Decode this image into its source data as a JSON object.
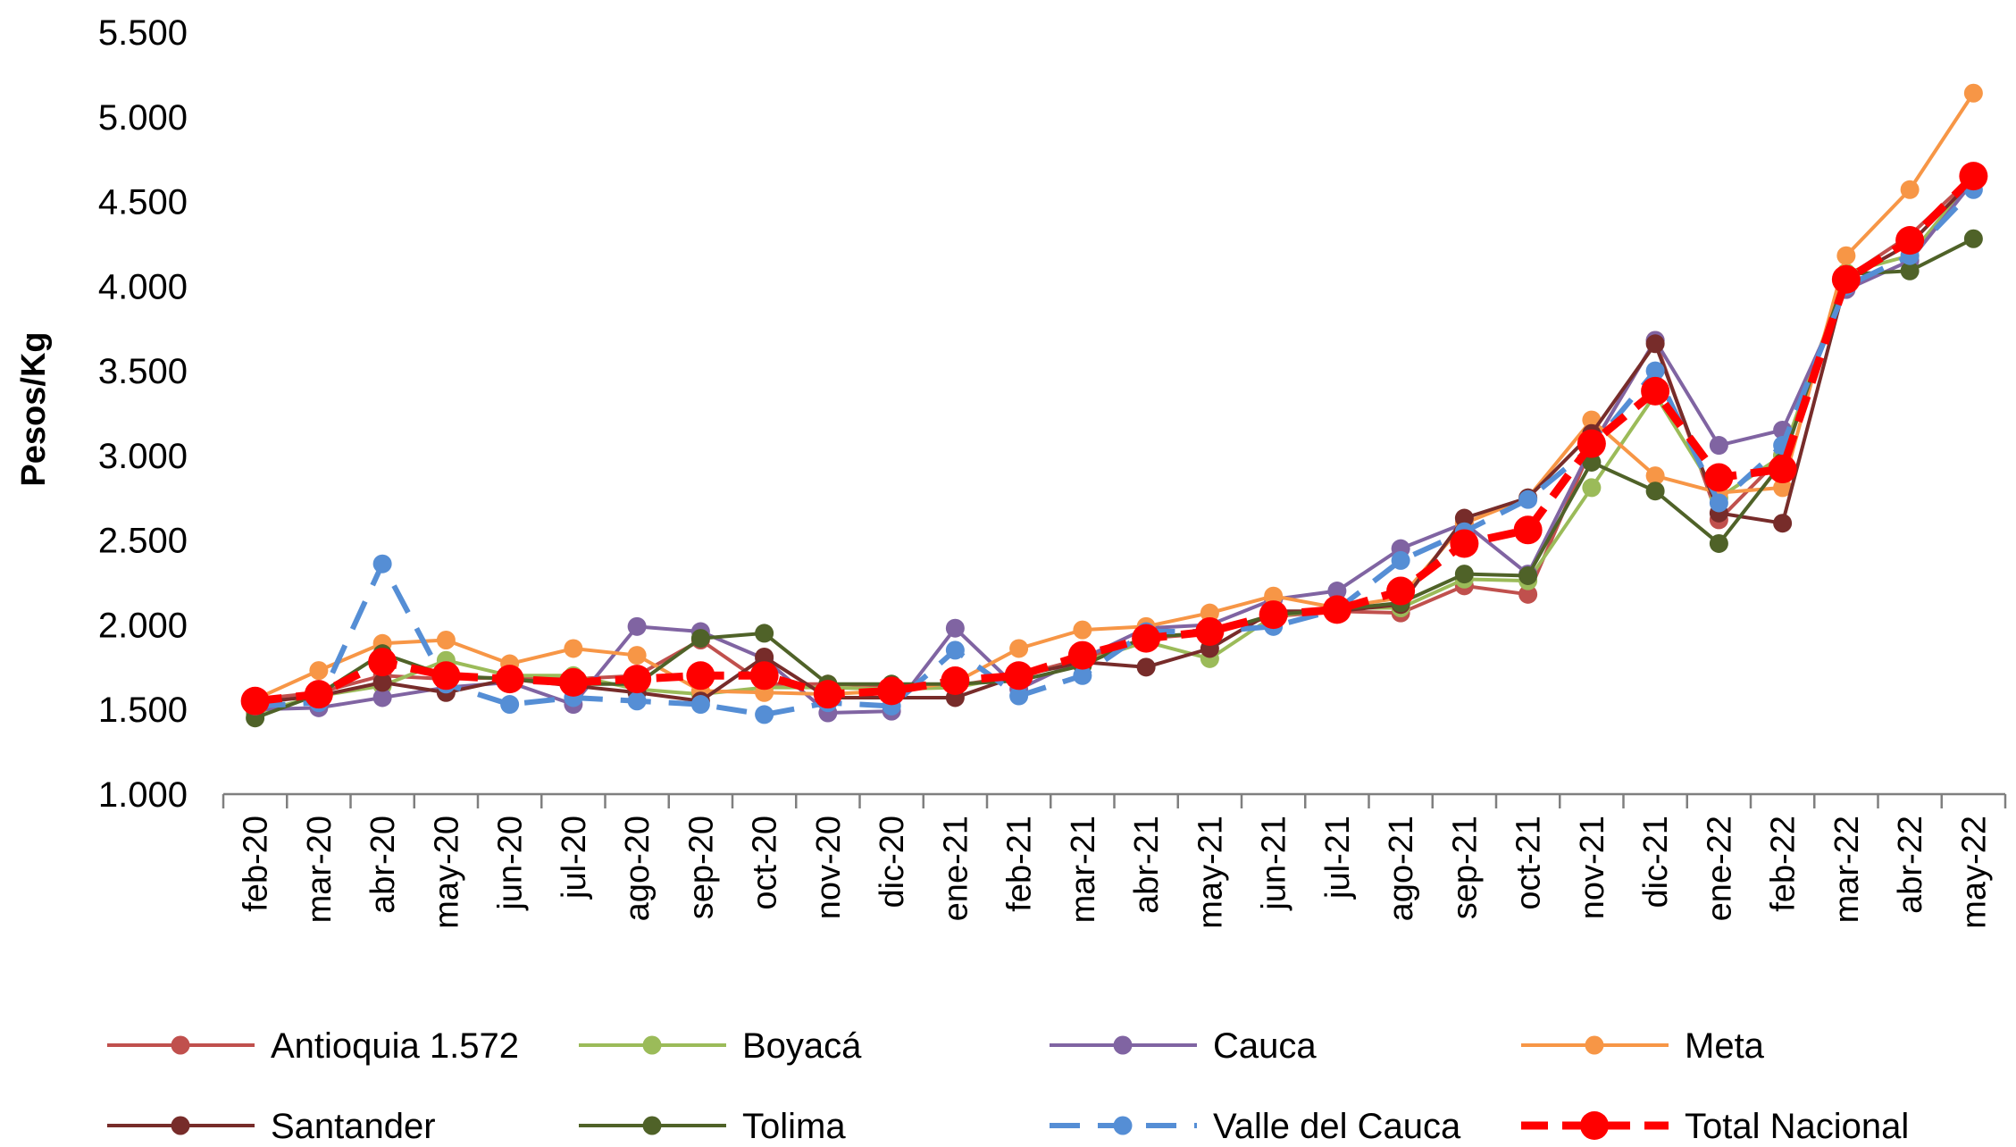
{
  "chart_data": {
    "type": "line",
    "ylabel": "Pesos/Kg",
    "xlabel": "",
    "ylim": [
      1000,
      5500
    ],
    "yticks": [
      "1.000",
      "1.500",
      "2.000",
      "2.500",
      "3.000",
      "3.500",
      "4.000",
      "4.500",
      "5.000",
      "5.500"
    ],
    "grid": false,
    "legend_position": "bottom",
    "categories": [
      "feb-20",
      "mar-20",
      "abr-20",
      "may-20",
      "jun-20",
      "jul-20",
      "ago-20",
      "sep-20",
      "oct-20",
      "nov-20",
      "dic-20",
      "ene-21",
      "feb-21",
      "mar-21",
      "abr-21",
      "may-21",
      "jun-21",
      "jul-21",
      "ago-21",
      "sep-21",
      "oct-21",
      "nov-21",
      "dic-21",
      "ene-22",
      "feb-22",
      "mar-22",
      "abr-22",
      "may-22"
    ],
    "series": [
      {
        "name": "Antioquia 1.572",
        "color": "#C0504D",
        "style": "solid",
        "values": [
          1560,
          1600,
          1700,
          1680,
          1690,
          1680,
          1700,
          1910,
          1650,
          1650,
          1640,
          1640,
          1700,
          1800,
          1920,
          1950,
          2050,
          2080,
          2070,
          2230,
          2180,
          3050,
          3680,
          2620,
          3000,
          4050,
          4300,
          4650
        ]
      },
      {
        "name": "Boyacá",
        "color": "#9BBB59",
        "style": "solid",
        "values": [
          1480,
          1580,
          1640,
          1790,
          1700,
          1700,
          1620,
          1590,
          1630,
          1630,
          1620,
          1630,
          1700,
          1780,
          1900,
          1800,
          2050,
          2100,
          2100,
          2270,
          2260,
          2810,
          3360,
          2750,
          3000,
          4080,
          4180,
          4640
        ]
      },
      {
        "name": "Cauca",
        "color": "#8064A2",
        "style": "solid",
        "values": [
          1500,
          1510,
          1570,
          1630,
          1660,
          1530,
          1990,
          1960,
          1800,
          1480,
          1490,
          1980,
          1620,
          1800,
          1980,
          2000,
          2150,
          2200,
          2450,
          2600,
          2300,
          3050,
          3680,
          3060,
          3150,
          3980,
          4150,
          4620
        ]
      },
      {
        "name": "Meta",
        "color": "#F79646",
        "style": "solid",
        "values": [
          1560,
          1730,
          1890,
          1910,
          1770,
          1860,
          1820,
          1610,
          1600,
          1590,
          1610,
          1660,
          1860,
          1970,
          1990,
          2070,
          2170,
          2100,
          2160,
          2600,
          2750,
          3210,
          2880,
          2780,
          2810,
          4180,
          4570,
          5140
        ]
      },
      {
        "name": "Santander",
        "color": "#772C2A",
        "style": "solid",
        "values": [
          1540,
          1580,
          1660,
          1600,
          1680,
          1640,
          1600,
          1550,
          1810,
          1570,
          1570,
          1570,
          1700,
          1780,
          1750,
          1860,
          2080,
          2080,
          2120,
          2630,
          2750,
          3130,
          3660,
          2660,
          2600,
          4040,
          4250,
          4630
        ]
      },
      {
        "name": "Tolima",
        "color": "#4F6228",
        "style": "solid",
        "values": [
          1450,
          1590,
          1830,
          1700,
          1680,
          1650,
          1650,
          1920,
          1950,
          1650,
          1650,
          1650,
          1670,
          1760,
          1930,
          1950,
          2060,
          2090,
          2130,
          2300,
          2290,
          2960,
          2790,
          2480,
          2960,
          4070,
          4090,
          4280
        ]
      },
      {
        "name": "Valle del Cauca",
        "color": "#558ED5",
        "style": "dashed",
        "values": [
          1520,
          1540,
          2360,
          1650,
          1530,
          1570,
          1550,
          1530,
          1470,
          1540,
          1520,
          1850,
          1580,
          1700,
          1960,
          1960,
          1990,
          2090,
          2380,
          2550,
          2740,
          3050,
          3500,
          2720,
          3060,
          4000,
          4180,
          4570
        ]
      },
      {
        "name": "Total Nacional",
        "color": "#FF0000",
        "style": "dashed-bold",
        "values": [
          1550,
          1590,
          1780,
          1700,
          1680,
          1660,
          1680,
          1700,
          1700,
          1590,
          1610,
          1670,
          1700,
          1820,
          1920,
          1960,
          2060,
          2090,
          2200,
          2480,
          2560,
          3070,
          3380,
          2870,
          2920,
          4040,
          4270,
          4650
        ]
      }
    ]
  }
}
